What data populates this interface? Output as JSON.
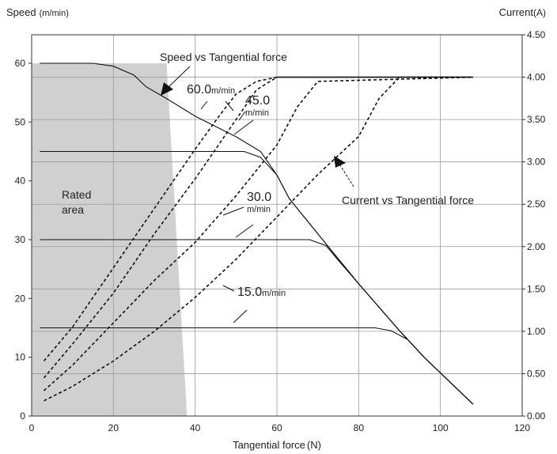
{
  "chart_data": {
    "type": "line",
    "left_axis_title": "Speed",
    "left_axis_unit": "(m/min)",
    "right_axis_title": "Current",
    "right_axis_unit": "(A)",
    "xlabel": "Tangential force",
    "xlabel_unit": "(N)",
    "xlim": [
      0,
      120
    ],
    "ylim_left": [
      0,
      65
    ],
    "ylim_right": [
      0,
      4.5
    ],
    "x_ticks": [
      "0",
      "20",
      "40",
      "60",
      "80",
      "100",
      "120"
    ],
    "y_left_ticks": [
      "0",
      "10",
      "20",
      "30",
      "40",
      "50",
      "60"
    ],
    "y_right_ticks": [
      "0.00",
      "0.50",
      "1.00",
      "1.50",
      "2.00",
      "2.50",
      "3.00",
      "3.50",
      "4.00",
      "4.50"
    ],
    "grid": true,
    "rated_area": {
      "label_line1": "Rated",
      "label_line2": "area",
      "boundary": [
        [
          0,
          60
        ],
        [
          33,
          60
        ],
        [
          38,
          0
        ],
        [
          0,
          0
        ]
      ]
    },
    "speed_series": [
      {
        "name": "60.0",
        "points": [
          [
            2,
            60
          ],
          [
            15,
            60
          ],
          [
            20,
            59.5
          ],
          [
            25,
            58
          ],
          [
            28,
            56
          ],
          [
            33,
            54
          ],
          [
            40,
            51
          ],
          [
            50,
            47.5
          ],
          [
            56,
            45
          ],
          [
            60,
            41
          ],
          [
            63,
            37
          ],
          [
            70,
            31
          ],
          [
            80,
            22.5
          ],
          [
            90,
            14.5
          ],
          [
            96,
            10
          ],
          [
            108,
            2
          ]
        ]
      },
      {
        "name": "45.0",
        "points": [
          [
            2,
            45
          ],
          [
            52,
            45
          ],
          [
            56,
            44
          ],
          [
            60,
            41
          ],
          [
            63,
            37
          ],
          [
            70,
            31
          ],
          [
            80,
            22.5
          ],
          [
            90,
            14.5
          ],
          [
            96,
            10
          ],
          [
            108,
            2
          ]
        ]
      },
      {
        "name": "30.0",
        "points": [
          [
            2,
            30
          ],
          [
            68,
            30
          ],
          [
            72,
            29
          ],
          [
            75,
            26.5
          ],
          [
            80,
            22.5
          ],
          [
            90,
            14.5
          ],
          [
            96,
            10
          ],
          [
            108,
            2
          ]
        ]
      },
      {
        "name": "15.0",
        "points": [
          [
            2,
            15
          ],
          [
            84,
            15
          ],
          [
            88,
            14.5
          ],
          [
            92,
            13
          ],
          [
            96,
            10
          ],
          [
            108,
            2
          ]
        ]
      }
    ],
    "current_series": [
      {
        "name": "60.0",
        "points": [
          [
            3,
            0.65
          ],
          [
            10,
            1.05
          ],
          [
            20,
            1.75
          ],
          [
            30,
            2.45
          ],
          [
            40,
            3.15
          ],
          [
            46,
            3.55
          ],
          [
            50,
            3.8
          ],
          [
            55,
            3.95
          ],
          [
            60,
            4.0
          ],
          [
            108,
            4.0
          ]
        ]
      },
      {
        "name": "45.0",
        "points": [
          [
            3,
            0.45
          ],
          [
            10,
            0.85
          ],
          [
            20,
            1.45
          ],
          [
            30,
            2.15
          ],
          [
            40,
            2.8
          ],
          [
            50,
            3.5
          ],
          [
            55,
            3.85
          ],
          [
            60,
            4.0
          ],
          [
            108,
            4.0
          ]
        ]
      },
      {
        "name": "30.0",
        "points": [
          [
            3,
            0.3
          ],
          [
            10,
            0.6
          ],
          [
            20,
            1.1
          ],
          [
            30,
            1.6
          ],
          [
            40,
            2.05
          ],
          [
            50,
            2.6
          ],
          [
            60,
            3.2
          ],
          [
            65,
            3.65
          ],
          [
            70,
            3.95
          ],
          [
            108,
            4.0
          ]
        ]
      },
      {
        "name": "15.0",
        "points": [
          [
            3,
            0.18
          ],
          [
            10,
            0.35
          ],
          [
            20,
            0.65
          ],
          [
            30,
            1.0
          ],
          [
            40,
            1.4
          ],
          [
            50,
            1.85
          ],
          [
            60,
            2.35
          ],
          [
            70,
            2.85
          ],
          [
            80,
            3.3
          ],
          [
            85,
            3.75
          ],
          [
            90,
            4.0
          ],
          [
            108,
            4.0
          ]
        ]
      }
    ],
    "annotations": {
      "speed_title": "Speed vs Tangential force",
      "current_title": "Current vs Tangential force",
      "lbl_60": "60.0",
      "lbl_45": "45.0",
      "lbl_30": "30.0",
      "lbl_15": "15.0",
      "unit": "m/min"
    }
  }
}
